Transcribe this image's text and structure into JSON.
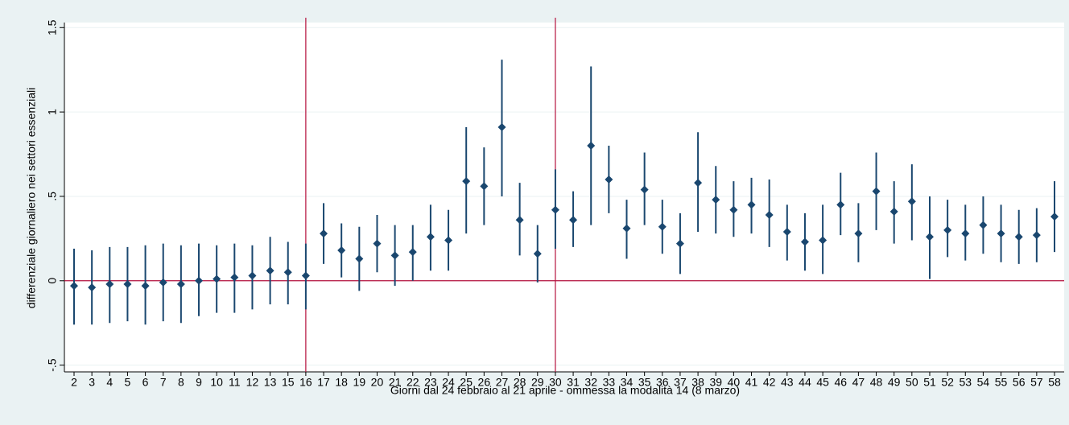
{
  "chart_data": {
    "type": "coefplot",
    "x_label": "Giorni dal 24 febbraio al 21 aprile - ommessa la modalità 14 (8 marzo)",
    "y_label": "differenziale giornaliero nei settori essenziali",
    "categories": [
      "2",
      "3",
      "4",
      "5",
      "6",
      "7",
      "8",
      "9",
      "10",
      "11",
      "12",
      "13",
      "15",
      "16",
      "17",
      "18",
      "19",
      "20",
      "21",
      "22",
      "23",
      "24",
      "25",
      "26",
      "27",
      "28",
      "29",
      "30",
      "31",
      "32",
      "33",
      "34",
      "35",
      "36",
      "37",
      "38",
      "39",
      "40",
      "41",
      "42",
      "43",
      "44",
      "45",
      "46",
      "47",
      "48",
      "49",
      "50",
      "51",
      "52",
      "53",
      "54",
      "55",
      "56",
      "57",
      "58"
    ],
    "values": [
      -0.03,
      -0.04,
      -0.02,
      -0.02,
      -0.03,
      -0.01,
      -0.02,
      0.0,
      0.01,
      0.02,
      0.03,
      0.06,
      0.05,
      0.03,
      0.28,
      0.18,
      0.13,
      0.22,
      0.15,
      0.17,
      0.26,
      0.24,
      0.59,
      0.56,
      0.91,
      0.36,
      0.16,
      0.42,
      0.36,
      0.8,
      0.6,
      0.31,
      0.54,
      0.32,
      0.22,
      0.58,
      0.48,
      0.42,
      0.45,
      0.39,
      0.29,
      0.23,
      0.24,
      0.45,
      0.28,
      0.53,
      0.41,
      0.47,
      0.26,
      0.3,
      0.28,
      0.33,
      0.28,
      0.26,
      0.27,
      0.38
    ],
    "lower": [
      -0.26,
      -0.26,
      -0.25,
      -0.24,
      -0.26,
      -0.24,
      -0.25,
      -0.21,
      -0.19,
      -0.19,
      -0.17,
      -0.14,
      -0.14,
      -0.17,
      0.1,
      0.02,
      -0.06,
      0.05,
      -0.03,
      0.0,
      0.06,
      0.06,
      0.28,
      0.33,
      0.5,
      0.15,
      -0.01,
      0.19,
      0.2,
      0.33,
      0.4,
      0.13,
      0.33,
      0.16,
      0.04,
      0.29,
      0.28,
      0.26,
      0.28,
      0.2,
      0.12,
      0.06,
      0.04,
      0.27,
      0.11,
      0.3,
      0.22,
      0.24,
      0.01,
      0.14,
      0.12,
      0.16,
      0.11,
      0.1,
      0.11,
      0.17
    ],
    "upper": [
      0.19,
      0.18,
      0.2,
      0.2,
      0.21,
      0.22,
      0.21,
      0.22,
      0.21,
      0.22,
      0.21,
      0.26,
      0.23,
      0.22,
      0.46,
      0.34,
      0.32,
      0.39,
      0.33,
      0.33,
      0.45,
      0.42,
      0.91,
      0.79,
      1.31,
      0.58,
      0.33,
      0.66,
      0.53,
      1.27,
      0.8,
      0.48,
      0.76,
      0.48,
      0.4,
      0.88,
      0.68,
      0.59,
      0.61,
      0.6,
      0.45,
      0.4,
      0.45,
      0.64,
      0.46,
      0.76,
      0.59,
      0.69,
      0.5,
      0.48,
      0.45,
      0.5,
      0.45,
      0.42,
      0.43,
      0.59
    ],
    "color": "#1a476f",
    "reference_color": "#b5103c",
    "reference_lines": {
      "x": [
        "16",
        "30"
      ],
      "y": 0
    },
    "ylim": [
      -0.54,
      1.53
    ],
    "yticks": [
      {
        "value": -0.5,
        "label": "-.5"
      },
      0,
      {
        "value": 0.5,
        "label": ".5"
      },
      1,
      1.5
    ],
    "grid": true
  }
}
